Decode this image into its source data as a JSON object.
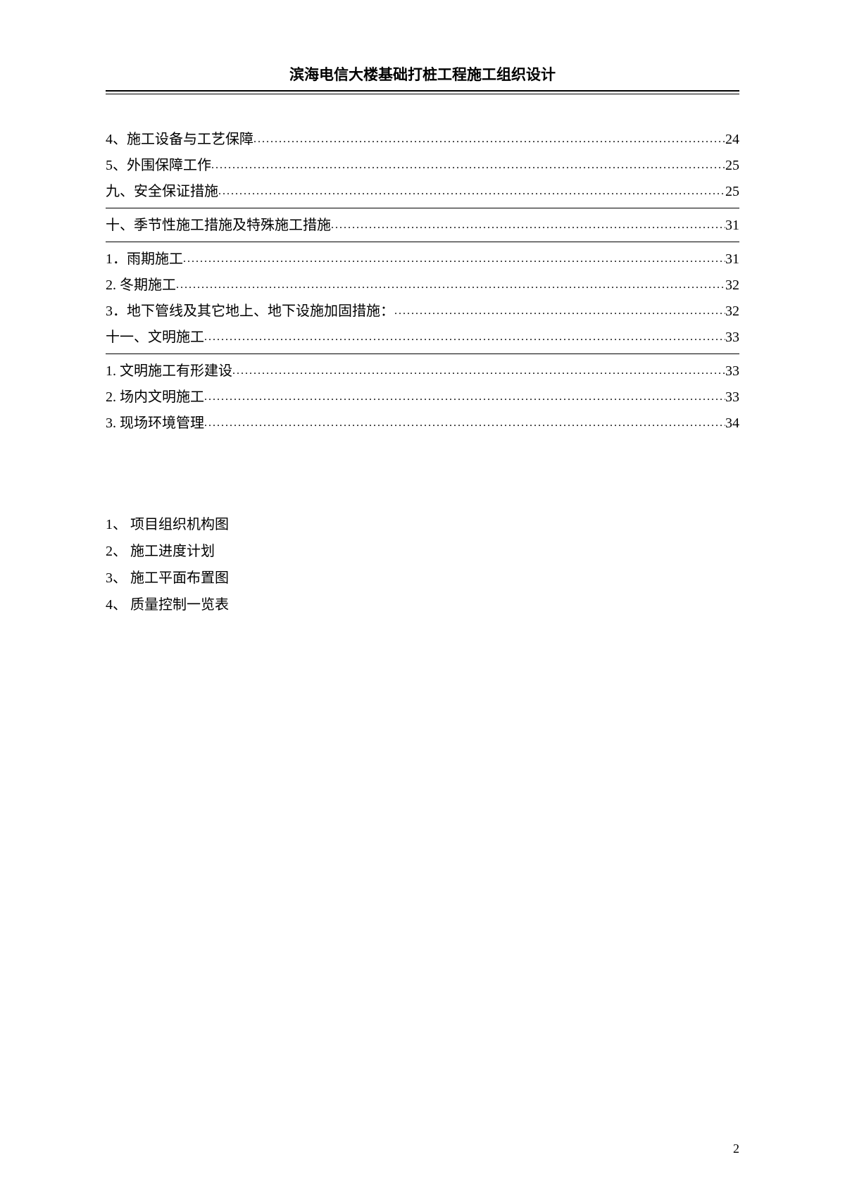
{
  "header": {
    "title": "滨海电信大楼基础打桩工程施工组织设计"
  },
  "toc": {
    "group1": [
      {
        "label": "4、施工设备与工艺保障",
        "page": "24"
      },
      {
        "label": "5、外围保障工作",
        "page": "25"
      },
      {
        "label": "九、安全保证措施",
        "page": "25"
      }
    ],
    "section2_title": {
      "label": "十、季节性施工措施及特殊施工措施",
      "page": "31"
    },
    "group2": [
      {
        "label": "1．雨期施工",
        "page": "31"
      },
      {
        "label": "2. 冬期施工",
        "page": "32"
      },
      {
        "label": "3．地下管线及其它地上、地下设施加固措施：",
        "page": "32"
      },
      {
        "label": "十一、文明施工",
        "page": "33"
      }
    ],
    "group3": [
      {
        "label": "1. 文明施工有形建设",
        "page": "33"
      },
      {
        "label": "2. 场内文明施工",
        "page": "33"
      },
      {
        "label": "3. 现场环境管理",
        "page": "34"
      }
    ]
  },
  "appendix": {
    "items": [
      "1、 项目组织机构图",
      "2、 施工进度计划",
      "3、 施工平面布置图",
      "4、 质量控制一览表"
    ]
  },
  "footer": {
    "page_number": "2"
  }
}
